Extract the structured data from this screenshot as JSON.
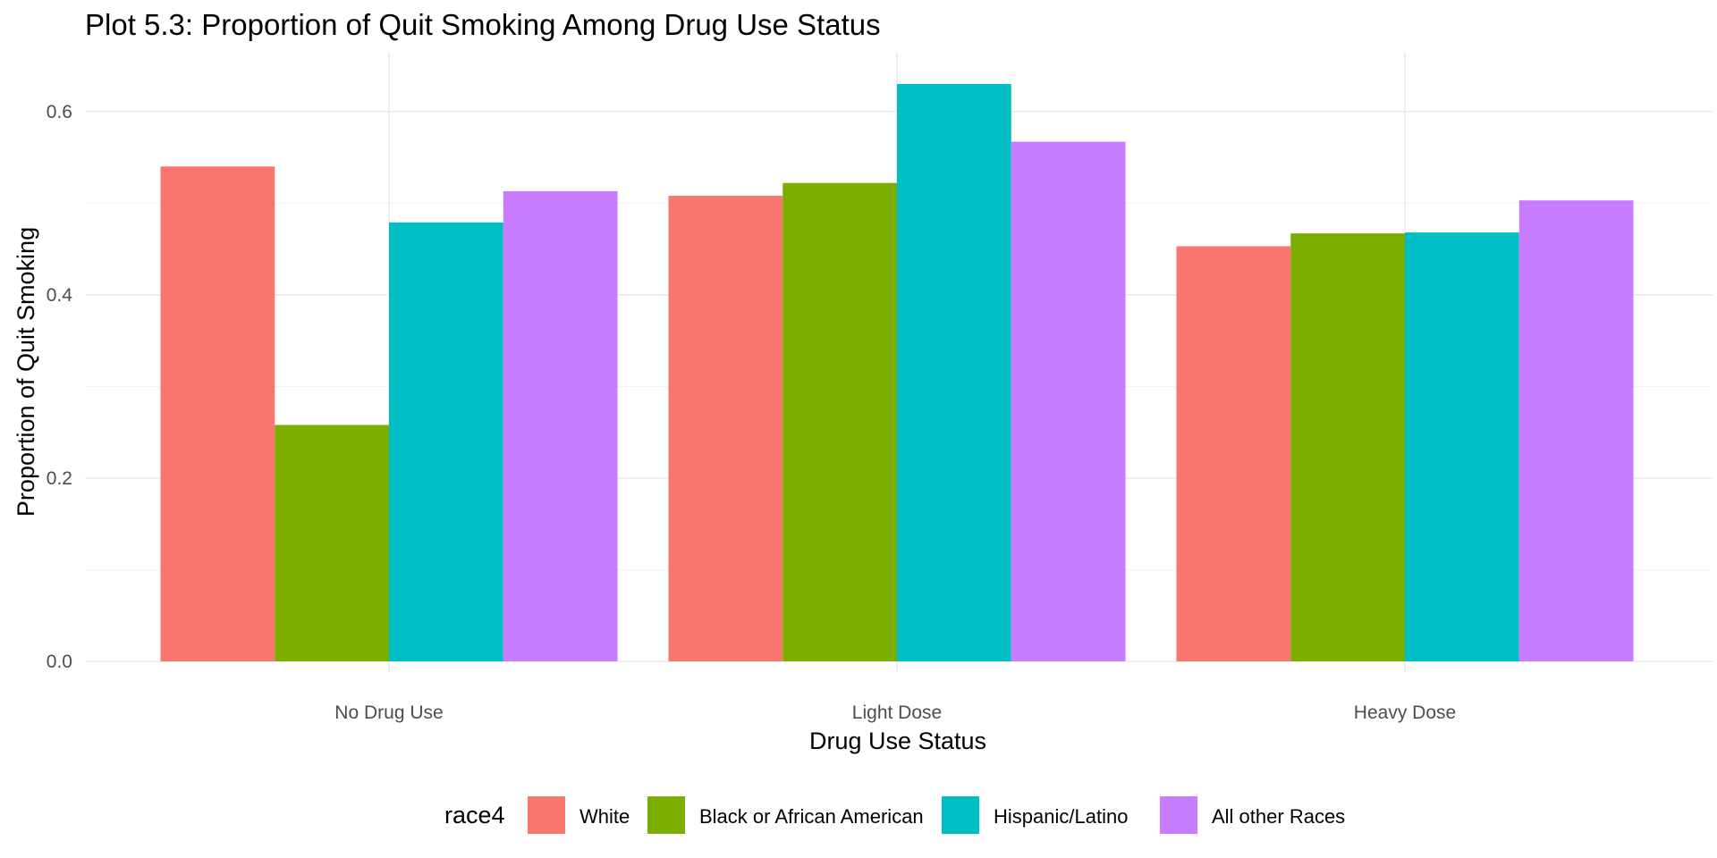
{
  "chart_data": {
    "type": "bar",
    "title": "Plot 5.3: Proportion of Quit Smoking Among Drug Use Status",
    "xlabel": "Drug Use Status",
    "ylabel": "Proportion of Quit Smoking",
    "categories": [
      "No Drug Use",
      "Light Dose",
      "Heavy Dose"
    ],
    "series": [
      {
        "name": "White",
        "color": "#F8766D",
        "values": [
          0.54,
          0.508,
          0.453
        ]
      },
      {
        "name": "Black or African American",
        "color": "#7CAE00",
        "values": [
          0.258,
          0.522,
          0.467
        ]
      },
      {
        "name": "Hispanic/Latino",
        "color": "#00BFC4",
        "values": [
          0.479,
          0.63,
          0.468
        ]
      },
      {
        "name": "All other Races",
        "color": "#C77CFF",
        "values": [
          0.513,
          0.567,
          0.503
        ]
      }
    ],
    "ylim": [
      0,
      0.63
    ],
    "yticks": [
      0.0,
      0.2,
      0.4,
      0.6
    ],
    "ytick_labels": [
      "0.0",
      "0.2",
      "0.4",
      "0.6"
    ],
    "grid": true,
    "legend": {
      "title": "race4",
      "position": "bottom"
    }
  }
}
